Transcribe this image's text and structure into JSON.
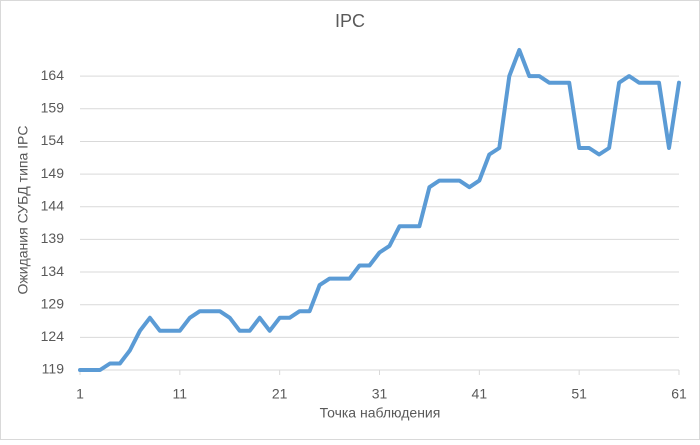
{
  "chart_data": {
    "type": "line",
    "title": "IPC",
    "x_label": "Точка наблюдения",
    "y_label": "Ожидания СУБД типа IPC",
    "x": [
      1,
      2,
      3,
      4,
      5,
      6,
      7,
      8,
      9,
      10,
      11,
      12,
      13,
      14,
      15,
      16,
      17,
      18,
      19,
      20,
      21,
      22,
      23,
      24,
      25,
      26,
      27,
      28,
      29,
      30,
      31,
      32,
      33,
      34,
      35,
      36,
      37,
      38,
      39,
      40,
      41,
      42,
      43,
      44,
      45,
      46,
      47,
      48,
      49,
      50,
      51,
      52,
      53,
      54,
      55,
      56,
      57,
      58,
      59,
      60,
      61
    ],
    "values": [
      119,
      119,
      119,
      120,
      120,
      122,
      125,
      127,
      125,
      125,
      125,
      127,
      128,
      128,
      128,
      127,
      125,
      125,
      127,
      125,
      127,
      127,
      128,
      128,
      132,
      133,
      133,
      133,
      135,
      135,
      137,
      138,
      141,
      141,
      141,
      147,
      148,
      148,
      148,
      147,
      148,
      152,
      153,
      164,
      168,
      164,
      164,
      163,
      163,
      163,
      153,
      153,
      152,
      153,
      163,
      164,
      163,
      163,
      163,
      153,
      163
    ],
    "color": "#5b9bd5",
    "xlim": [
      1,
      61
    ],
    "xticks": [
      1,
      11,
      21,
      31,
      41,
      51,
      61
    ],
    "ylim": [
      119,
      169
    ],
    "yticks": [
      119,
      124,
      129,
      134,
      139,
      144,
      149,
      154,
      159,
      164
    ],
    "grid": true
  }
}
